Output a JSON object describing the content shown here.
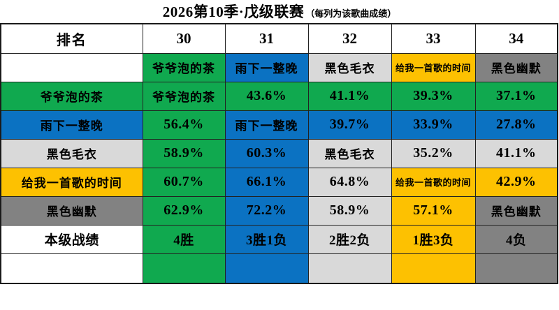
{
  "palette": {
    "green": "#10A94F",
    "blue": "#0B72C2",
    "lightgray": "#D9D9D9",
    "yellow": "#FDC101",
    "gray": "#828282",
    "white": "#FFFFFF"
  },
  "chart_data": {
    "type": "table",
    "title": "2026第10季·戊级联赛",
    "subtitle": "（每列为该歌曲成绩）",
    "header": [
      "排名",
      "30",
      "31",
      "32",
      "33",
      "34"
    ],
    "column_songs": [
      "爷爷泡的茶",
      "雨下一整晚",
      "黑色毛衣",
      "给我一首歌的时间",
      "黑色幽默"
    ],
    "records": [
      "4胜",
      "3胜1负",
      "2胜2负",
      "1胜3负",
      "4负"
    ],
    "rows": [
      {
        "label": {
          "text": "",
          "bg": "white",
          "size": "song"
        },
        "cells": [
          {
            "text": "爷爷泡的茶",
            "bg": "green",
            "size": "song"
          },
          {
            "text": "雨下一整晚",
            "bg": "blue",
            "size": "song"
          },
          {
            "text": "黑色毛衣",
            "bg": "lightgray",
            "size": "song"
          },
          {
            "text": "给我一首歌的时间",
            "bg": "yellow",
            "size": "songsm"
          },
          {
            "text": "黑色幽默",
            "bg": "gray",
            "size": "song"
          }
        ]
      },
      {
        "label": {
          "text": "爷爷泡的茶",
          "bg": "green",
          "size": "song"
        },
        "cells": [
          {
            "text": "爷爷泡的茶",
            "bg": "green",
            "size": "song"
          },
          {
            "text": "43.6%",
            "bg": "green",
            "size": "pct"
          },
          {
            "text": "41.1%",
            "bg": "green",
            "size": "pct"
          },
          {
            "text": "39.3%",
            "bg": "green",
            "size": "pct"
          },
          {
            "text": "37.1%",
            "bg": "green",
            "size": "pct"
          }
        ]
      },
      {
        "label": {
          "text": "雨下一整晚",
          "bg": "blue",
          "size": "song"
        },
        "cells": [
          {
            "text": "56.4%",
            "bg": "green",
            "size": "pct"
          },
          {
            "text": "雨下一整晚",
            "bg": "blue",
            "size": "song"
          },
          {
            "text": "39.7%",
            "bg": "blue",
            "size": "pct"
          },
          {
            "text": "33.9%",
            "bg": "blue",
            "size": "pct"
          },
          {
            "text": "27.8%",
            "bg": "blue",
            "size": "pct"
          }
        ]
      },
      {
        "label": {
          "text": "黑色毛衣",
          "bg": "lightgray",
          "size": "song"
        },
        "cells": [
          {
            "text": "58.9%",
            "bg": "green",
            "size": "pct"
          },
          {
            "text": "60.3%",
            "bg": "blue",
            "size": "pct"
          },
          {
            "text": "黑色毛衣",
            "bg": "lightgray",
            "size": "song"
          },
          {
            "text": "35.2%",
            "bg": "lightgray",
            "size": "pct"
          },
          {
            "text": "41.1%",
            "bg": "lightgray",
            "size": "pct"
          }
        ]
      },
      {
        "label": {
          "text": "给我一首歌的时间",
          "bg": "yellow",
          "size": "song"
        },
        "cells": [
          {
            "text": "60.7%",
            "bg": "green",
            "size": "pct"
          },
          {
            "text": "66.1%",
            "bg": "blue",
            "size": "pct"
          },
          {
            "text": "64.8%",
            "bg": "lightgray",
            "size": "pct"
          },
          {
            "text": "给我一首歌的时间",
            "bg": "yellow",
            "size": "songsm"
          },
          {
            "text": "42.9%",
            "bg": "yellow",
            "size": "pct"
          }
        ]
      },
      {
        "label": {
          "text": "黑色幽默",
          "bg": "gray",
          "size": "song"
        },
        "cells": [
          {
            "text": "62.9%",
            "bg": "green",
            "size": "pct"
          },
          {
            "text": "72.2%",
            "bg": "blue",
            "size": "pct"
          },
          {
            "text": "58.9%",
            "bg": "lightgray",
            "size": "pct"
          },
          {
            "text": "57.1%",
            "bg": "yellow",
            "size": "pct"
          },
          {
            "text": "黑色幽默",
            "bg": "gray",
            "size": "song"
          }
        ]
      },
      {
        "label": {
          "text": "本级战绩",
          "bg": "white",
          "size": "record"
        },
        "cells": [
          {
            "text": "4胜",
            "bg": "green",
            "size": "record"
          },
          {
            "text": "3胜1负",
            "bg": "blue",
            "size": "record"
          },
          {
            "text": "2胜2负",
            "bg": "lightgray",
            "size": "record"
          },
          {
            "text": "1胜3负",
            "bg": "yellow",
            "size": "record"
          },
          {
            "text": "4负",
            "bg": "gray",
            "size": "record"
          }
        ]
      },
      {
        "last": true,
        "label": {
          "text": "",
          "bg": "white",
          "size": "song"
        },
        "cells": [
          {
            "text": "",
            "bg": "green",
            "size": "pct"
          },
          {
            "text": "",
            "bg": "blue",
            "size": "pct"
          },
          {
            "text": "",
            "bg": "lightgray",
            "size": "pct"
          },
          {
            "text": "",
            "bg": "yellow",
            "size": "pct"
          },
          {
            "text": "",
            "bg": "gray",
            "size": "pct"
          }
        ]
      }
    ]
  }
}
